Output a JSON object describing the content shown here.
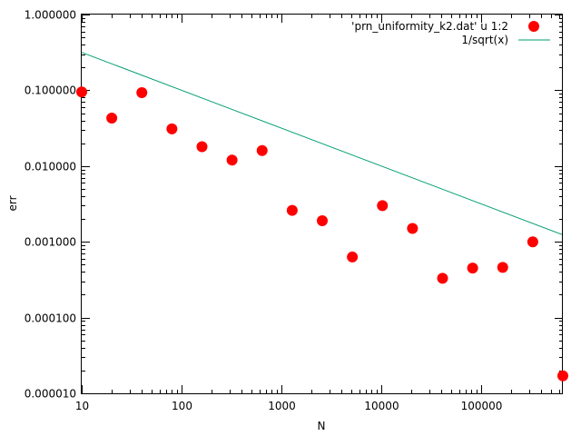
{
  "chart_data": {
    "type": "scatter",
    "title": "",
    "xlabel": "N",
    "ylabel": "err",
    "xscale": "log",
    "yscale": "log",
    "xlim": [
      10,
      655360
    ],
    "ylim": [
      1e-05,
      1.0
    ],
    "grid": false,
    "legend_position": "top-right",
    "x_ticks": [
      {
        "value": 10,
        "label": "10"
      },
      {
        "value": 100,
        "label": "100"
      },
      {
        "value": 1000,
        "label": "1000"
      },
      {
        "value": 10000,
        "label": "10000"
      },
      {
        "value": 100000,
        "label": "100000"
      }
    ],
    "y_ticks": [
      {
        "value": 1.0,
        "label": "1.000000"
      },
      {
        "value": 0.1,
        "label": "0.100000"
      },
      {
        "value": 0.01,
        "label": "0.010000"
      },
      {
        "value": 0.001,
        "label": "0.001000"
      },
      {
        "value": 0.0001,
        "label": "0.000100"
      },
      {
        "value": 1e-05,
        "label": "0.000010"
      }
    ],
    "series": [
      {
        "name": "'prn_uniformity_k2.dat' u 1:2",
        "kind": "points",
        "color": "#ff0000",
        "x": [
          10,
          20,
          40,
          80,
          160,
          320,
          640,
          1280,
          2560,
          5120,
          10240,
          20480,
          40960,
          81920,
          163840,
          327680,
          655360
        ],
        "y": [
          0.095,
          0.043,
          0.093,
          0.031,
          0.018,
          0.012,
          0.016,
          0.0026,
          0.0019,
          0.00063,
          0.003,
          0.0015,
          0.00033,
          0.00045,
          0.00046,
          0.001,
          1.7e-05
        ]
      },
      {
        "name": "1/sqrt(x)",
        "kind": "line",
        "color": "#009e73",
        "function": "1/sqrt(x)"
      }
    ]
  }
}
